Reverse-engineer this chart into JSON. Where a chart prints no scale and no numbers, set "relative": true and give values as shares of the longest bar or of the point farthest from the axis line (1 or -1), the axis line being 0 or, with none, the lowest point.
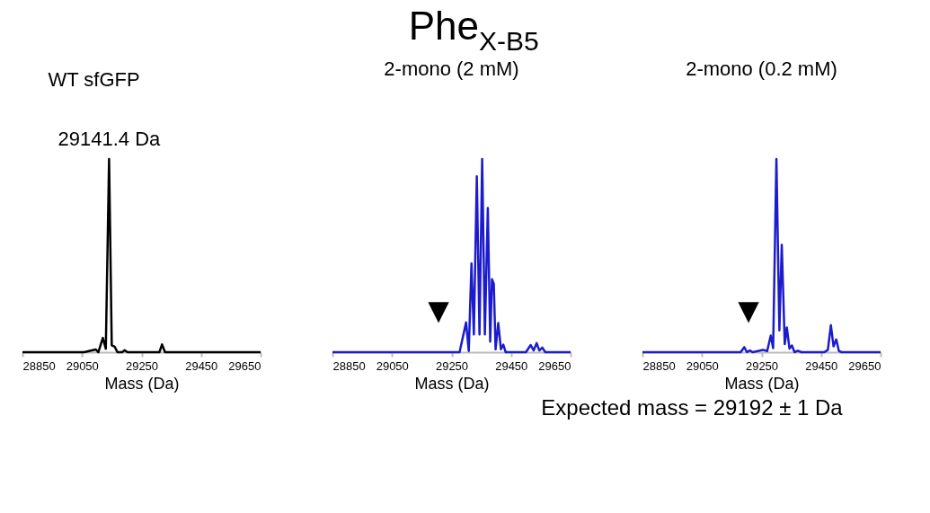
{
  "chart_data": [
    {
      "type": "line",
      "title": "WT sfGFP",
      "xlabel": "Mass (Da)",
      "relative": true,
      "xlim": [
        28850,
        29650
      ],
      "xticks": [
        28850,
        29050,
        29250,
        29450,
        29650
      ],
      "grid": false,
      "annotations": [
        {
          "text": "29141.4 Da",
          "x": 29141,
          "y": 1
        }
      ],
      "series": [
        {
          "color": "#000000",
          "x": [
            28850,
            29057,
            29096,
            29105,
            29120,
            29130,
            29141,
            29150,
            29160,
            29169,
            29185,
            29193,
            29203,
            29310,
            29319,
            29329,
            29650
          ],
          "values": [
            0,
            0,
            0.014,
            0,
            0.074,
            0.018,
            1,
            0.035,
            0.028,
            0,
            0,
            0.01,
            0,
            0,
            0.04,
            0,
            0
          ]
        }
      ]
    },
    {
      "type": "line",
      "title": "2-mono (2 mM)",
      "xlabel": "Mass (Da)",
      "relative": true,
      "xlim": [
        28850,
        29650
      ],
      "xticks": [
        28850,
        29050,
        29250,
        29450,
        29650
      ],
      "grid": false,
      "annotations": [
        "▼"
      ],
      "series": [
        {
          "color": "#1c1ccc",
          "x": [
            28850,
            29277,
            29299,
            29308,
            29317,
            29325,
            29335,
            29344,
            29353,
            29362,
            29372,
            29380,
            29386,
            29392,
            29398,
            29407,
            29416,
            29424,
            29432,
            29500,
            29516,
            29526,
            29536,
            29545,
            29555,
            29565,
            29650
          ],
          "values": [
            0,
            0,
            0.154,
            0.006,
            0.459,
            0.092,
            0.91,
            0.092,
            1,
            0.092,
            0.747,
            0.055,
            0.378,
            0.354,
            0.015,
            0.151,
            0.015,
            0.039,
            0,
            0,
            0.037,
            0.009,
            0.047,
            0.009,
            0.024,
            0,
            0
          ]
        }
      ]
    },
    {
      "type": "line",
      "title": "2-mono (0.2 mM)",
      "xlabel": "Mass (Da)",
      "relative": true,
      "xlim": [
        28850,
        29650
      ],
      "xticks": [
        28850,
        29050,
        29250,
        29450,
        29650
      ],
      "grid": false,
      "annotations": [
        "▼"
      ],
      "series": [
        {
          "color": "#1c1ccc",
          "x": [
            28850,
            29180,
            29192,
            29201,
            29211,
            29220,
            29255,
            29269,
            29281,
            29289,
            29300,
            29310,
            29318,
            29328,
            29335,
            29344,
            29352,
            29361,
            29372,
            29384,
            29461,
            29473,
            29483,
            29492,
            29501,
            29510,
            29519,
            29650
          ],
          "values": [
            0,
            0,
            0.026,
            0,
            0.009,
            0,
            0.012,
            0.006,
            0.086,
            0.021,
            1,
            0.113,
            0.556,
            0.042,
            0.128,
            0.018,
            0.035,
            0,
            0.008,
            0,
            0,
            0.012,
            0.14,
            0.03,
            0.066,
            0.006,
            0,
            0
          ]
        }
      ]
    },
    {
      "type": "other",
      "title": "Phe$_{X-B5}$",
      "annotations": [
        "Expected mass = 29192 ± 1 Da"
      ]
    }
  ]
}
